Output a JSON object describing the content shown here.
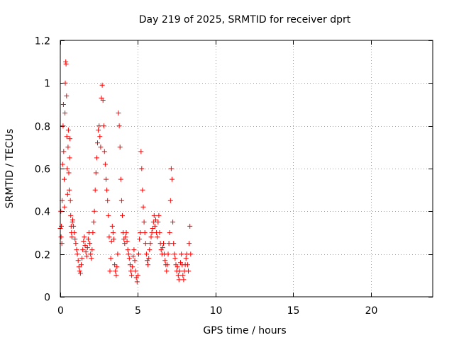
{
  "chart_data": {
    "type": "scatter",
    "title": "Day 219 of 2025, SRMTID for receiver dprt",
    "xlabel": "GPS time / hours",
    "ylabel": "SRMTID / TECUs",
    "xlim": [
      0,
      24
    ],
    "ylim": [
      0,
      1.2
    ],
    "xticks": [
      0,
      5,
      10,
      15,
      20
    ],
    "xtick_labels": [
      "0",
      "5",
      "10",
      "15",
      "20"
    ],
    "yticks": [
      0,
      0.2,
      0.4,
      0.6,
      0.8,
      1.0,
      1.2
    ],
    "ytick_labels": [
      "0",
      "0.2",
      "0.4",
      "0.6",
      "0.8",
      "1",
      "1.2"
    ],
    "grid": true,
    "marker": "+",
    "series": [
      {
        "name": "SRMTID",
        "color": "#ff0000",
        "points": [
          [
            0.0,
            0.32
          ],
          [
            0.03,
            0.4
          ],
          [
            0.05,
            0.28
          ],
          [
            0.07,
            0.33
          ],
          [
            0.1,
            0.25
          ],
          [
            0.12,
            0.45
          ],
          [
            0.15,
            0.62
          ],
          [
            0.18,
            0.8
          ],
          [
            0.2,
            0.9
          ],
          [
            0.22,
            0.68
          ],
          [
            0.25,
            0.55
          ],
          [
            0.27,
            0.42
          ],
          [
            0.3,
            0.86
          ],
          [
            0.32,
            1.0
          ],
          [
            0.35,
            1.1
          ],
          [
            0.37,
            1.09
          ],
          [
            0.4,
            0.94
          ],
          [
            0.42,
            0.75
          ],
          [
            0.45,
            0.6
          ],
          [
            0.47,
            0.48
          ],
          [
            0.5,
            0.7
          ],
          [
            0.52,
            0.78
          ],
          [
            0.55,
            0.58
          ],
          [
            0.57,
            0.5
          ],
          [
            0.6,
            0.65
          ],
          [
            0.62,
            0.74
          ],
          [
            0.65,
            0.45
          ],
          [
            0.67,
            0.38
          ],
          [
            0.7,
            0.33
          ],
          [
            0.72,
            0.3
          ],
          [
            0.75,
            0.28
          ],
          [
            0.78,
            0.35
          ],
          [
            0.8,
            0.36
          ],
          [
            0.85,
            0.33
          ],
          [
            0.9,
            0.3
          ],
          [
            0.95,
            0.27
          ],
          [
            1.0,
            0.25
          ],
          [
            1.05,
            0.22
          ],
          [
            1.1,
            0.2
          ],
          [
            1.15,
            0.17
          ],
          [
            1.2,
            0.14
          ],
          [
            1.25,
            0.12
          ],
          [
            1.3,
            0.11
          ],
          [
            1.35,
            0.15
          ],
          [
            1.4,
            0.18
          ],
          [
            1.45,
            0.22
          ],
          [
            1.5,
            0.26
          ],
          [
            1.55,
            0.28
          ],
          [
            1.6,
            0.24
          ],
          [
            1.65,
            0.21
          ],
          [
            1.7,
            0.19
          ],
          [
            1.75,
            0.23
          ],
          [
            1.8,
            0.27
          ],
          [
            1.85,
            0.3
          ],
          [
            1.9,
            0.25
          ],
          [
            1.95,
            0.2
          ],
          [
            2.0,
            0.18
          ],
          [
            2.05,
            0.22
          ],
          [
            2.1,
            0.3
          ],
          [
            2.15,
            0.35
          ],
          [
            2.2,
            0.4
          ],
          [
            2.25,
            0.5
          ],
          [
            2.3,
            0.58
          ],
          [
            2.35,
            0.65
          ],
          [
            2.4,
            0.72
          ],
          [
            2.45,
            0.78
          ],
          [
            2.5,
            0.8
          ],
          [
            2.55,
            0.75
          ],
          [
            2.6,
            0.7
          ],
          [
            2.65,
            0.93
          ],
          [
            2.7,
            0.99
          ],
          [
            2.75,
            0.92
          ],
          [
            2.8,
            0.8
          ],
          [
            2.85,
            0.68
          ],
          [
            2.9,
            0.62
          ],
          [
            2.95,
            0.55
          ],
          [
            3.0,
            0.5
          ],
          [
            3.05,
            0.45
          ],
          [
            3.1,
            0.38
          ],
          [
            3.15,
            0.28
          ],
          [
            3.2,
            0.12
          ],
          [
            3.25,
            0.18
          ],
          [
            3.3,
            0.26
          ],
          [
            3.35,
            0.33
          ],
          [
            3.4,
            0.3
          ],
          [
            3.45,
            0.27
          ],
          [
            3.5,
            0.15
          ],
          [
            3.55,
            0.12
          ],
          [
            3.6,
            0.1
          ],
          [
            3.65,
            0.14
          ],
          [
            3.7,
            0.2
          ],
          [
            3.75,
            0.86
          ],
          [
            3.8,
            0.8
          ],
          [
            3.85,
            0.7
          ],
          [
            3.9,
            0.55
          ],
          [
            3.95,
            0.45
          ],
          [
            4.0,
            0.38
          ],
          [
            4.05,
            0.3
          ],
          [
            4.1,
            0.27
          ],
          [
            4.15,
            0.25
          ],
          [
            4.2,
            0.28
          ],
          [
            4.25,
            0.3
          ],
          [
            4.3,
            0.26
          ],
          [
            4.35,
            0.22
          ],
          [
            4.4,
            0.2
          ],
          [
            4.45,
            0.18
          ],
          [
            4.5,
            0.15
          ],
          [
            4.55,
            0.12
          ],
          [
            4.6,
            0.1
          ],
          [
            4.65,
            0.14
          ],
          [
            4.7,
            0.19
          ],
          [
            4.75,
            0.22
          ],
          [
            4.8,
            0.17
          ],
          [
            4.85,
            0.12
          ],
          [
            4.9,
            0.09
          ],
          [
            4.95,
            0.07
          ],
          [
            5.0,
            0.1
          ],
          [
            5.05,
            0.2
          ],
          [
            5.1,
            0.27
          ],
          [
            5.15,
            0.3
          ],
          [
            5.2,
            0.68
          ],
          [
            5.25,
            0.6
          ],
          [
            5.3,
            0.5
          ],
          [
            5.35,
            0.42
          ],
          [
            5.4,
            0.35
          ],
          [
            5.45,
            0.3
          ],
          [
            5.5,
            0.25
          ],
          [
            5.55,
            0.2
          ],
          [
            5.6,
            0.17
          ],
          [
            5.65,
            0.15
          ],
          [
            5.7,
            0.18
          ],
          [
            5.75,
            0.22
          ],
          [
            5.8,
            0.25
          ],
          [
            5.85,
            0.28
          ],
          [
            5.9,
            0.3
          ],
          [
            5.95,
            0.32
          ],
          [
            6.0,
            0.35
          ],
          [
            6.05,
            0.38
          ],
          [
            6.1,
            0.33
          ],
          [
            6.15,
            0.36
          ],
          [
            6.2,
            0.3
          ],
          [
            6.25,
            0.28
          ],
          [
            6.3,
            0.35
          ],
          [
            6.35,
            0.38
          ],
          [
            6.4,
            0.3
          ],
          [
            6.45,
            0.25
          ],
          [
            6.5,
            0.22
          ],
          [
            6.55,
            0.2
          ],
          [
            6.6,
            0.23
          ],
          [
            6.65,
            0.25
          ],
          [
            6.7,
            0.2
          ],
          [
            6.75,
            0.17
          ],
          [
            6.8,
            0.15
          ],
          [
            6.85,
            0.12
          ],
          [
            6.9,
            0.15
          ],
          [
            6.95,
            0.2
          ],
          [
            7.0,
            0.25
          ],
          [
            7.05,
            0.3
          ],
          [
            7.1,
            0.45
          ],
          [
            7.15,
            0.6
          ],
          [
            7.2,
            0.55
          ],
          [
            7.25,
            0.35
          ],
          [
            7.3,
            0.25
          ],
          [
            7.35,
            0.2
          ],
          [
            7.4,
            0.18
          ],
          [
            7.45,
            0.15
          ],
          [
            7.5,
            0.12
          ],
          [
            7.55,
            0.14
          ],
          [
            7.6,
            0.1
          ],
          [
            7.65,
            0.08
          ],
          [
            7.7,
            0.12
          ],
          [
            7.75,
            0.16
          ],
          [
            7.8,
            0.2
          ],
          [
            7.85,
            0.15
          ],
          [
            7.9,
            0.1
          ],
          [
            7.95,
            0.08
          ],
          [
            8.0,
            0.12
          ],
          [
            8.05,
            0.15
          ],
          [
            8.1,
            0.18
          ],
          [
            8.15,
            0.2
          ],
          [
            8.2,
            0.15
          ],
          [
            8.25,
            0.12
          ],
          [
            8.3,
            0.25
          ],
          [
            8.35,
            0.33
          ],
          [
            8.4,
            0.2
          ]
        ]
      }
    ]
  }
}
